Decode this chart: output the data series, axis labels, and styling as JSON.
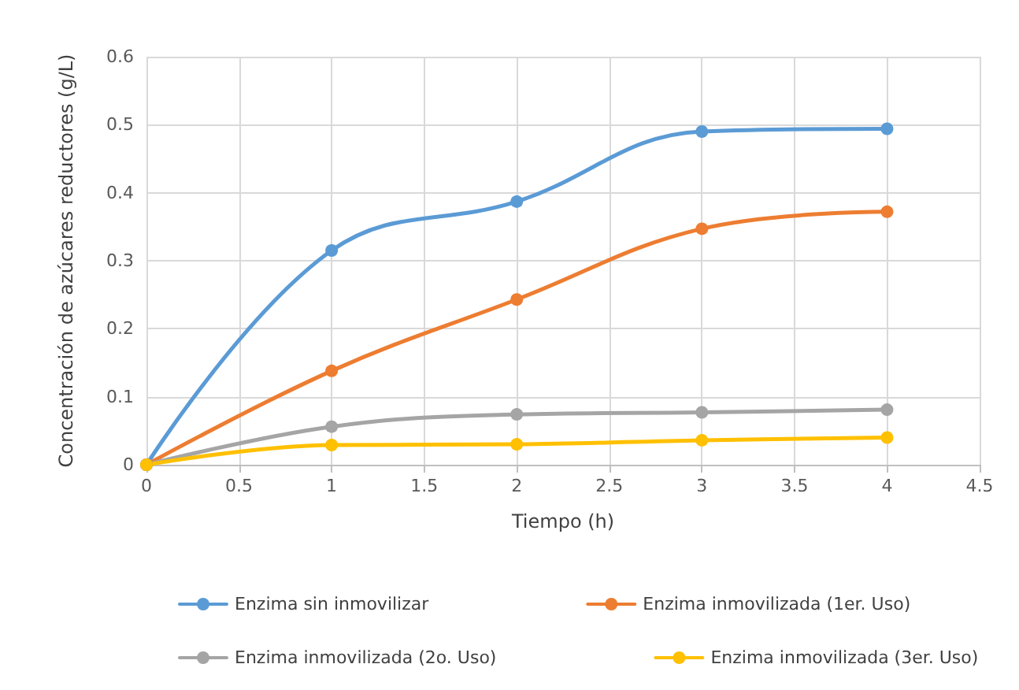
{
  "chart_data": {
    "type": "line",
    "xlabel": "Tiempo (h)",
    "ylabel": "Concentración de azúcares reductores (g/L)",
    "x": [
      0,
      1,
      2,
      3,
      4
    ],
    "series": [
      {
        "name": "Enzima sin inmovilizar",
        "color": "#5b9bd5",
        "values": [
          0,
          0.315,
          0.387,
          0.49,
          0.494
        ]
      },
      {
        "name": "Enzima inmovilizada (1er. Uso)",
        "color": "#ed7d31",
        "values": [
          0,
          0.138,
          0.243,
          0.347,
          0.372
        ]
      },
      {
        "name": "Enzima inmovilizada (2o. Uso)",
        "color": "#a5a5a5",
        "values": [
          0,
          0.056,
          0.074,
          0.077,
          0.081
        ]
      },
      {
        "name": "Enzima inmovilizada (3er. Uso)",
        "color": "#ffc000",
        "values": [
          0,
          0.029,
          0.03,
          0.036,
          0.04
        ]
      }
    ],
    "xlim": [
      0,
      4.5
    ],
    "xticks": [
      0,
      0.5,
      1,
      1.5,
      2,
      2.5,
      3,
      3.5,
      4,
      4.5
    ],
    "ylim": [
      0,
      0.6
    ],
    "yticks": [
      0,
      0.1,
      0.2,
      0.3,
      0.4,
      0.5,
      0.6
    ],
    "grid": true,
    "legend": "bottom",
    "marker": "circle",
    "line_style": "solid"
  }
}
